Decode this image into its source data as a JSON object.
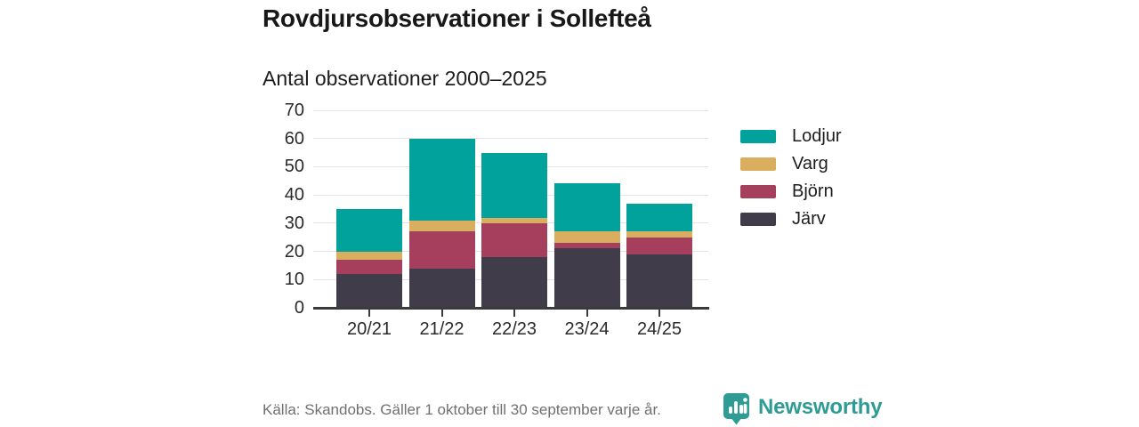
{
  "title": "Rovdjursobservationer i Sollefteå",
  "subtitle": "Antal observationer 2000–2025",
  "footer": {
    "source": "Källa: Skandobs. Gäller 1 oktober till 30 september varje år.",
    "brand": "Newsworthy",
    "brand_color": "#2e9c94"
  },
  "chart_data": {
    "type": "bar",
    "stacked": true,
    "title": "Rovdjursobservationer i Sollefteå",
    "subtitle": "Antal observationer 2000–2025",
    "categories": [
      "20/21",
      "21/22",
      "22/23",
      "23/24",
      "24/25"
    ],
    "series": [
      {
        "name": "Järv",
        "color": "#413c4a",
        "values": [
          12,
          14,
          18,
          21,
          19
        ]
      },
      {
        "name": "Björn",
        "color": "#a63f5e",
        "values": [
          5,
          13,
          12,
          2,
          6
        ]
      },
      {
        "name": "Varg",
        "color": "#d9ae5f",
        "values": [
          3,
          4,
          2,
          4,
          2
        ]
      },
      {
        "name": "Lodjur",
        "color": "#00a29b",
        "values": [
          15,
          29,
          23,
          17,
          10
        ]
      }
    ],
    "totals": [
      35,
      60,
      55,
      44,
      37
    ],
    "legend_order": [
      "Lodjur",
      "Varg",
      "Björn",
      "Järv"
    ],
    "legend_position": "right",
    "yticks": [
      0,
      10,
      20,
      30,
      40,
      50,
      60,
      70
    ],
    "ylim": [
      0,
      70
    ],
    "grid": true,
    "xlabel": "",
    "ylabel": ""
  }
}
